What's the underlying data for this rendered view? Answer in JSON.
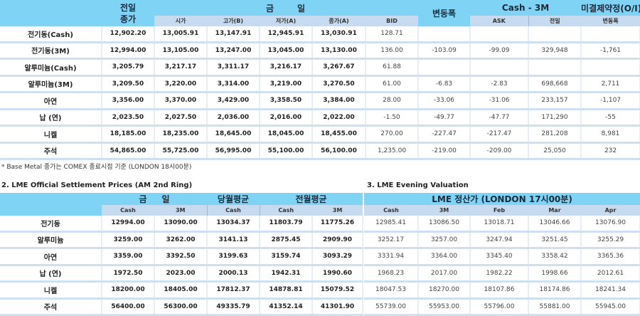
{
  "colors": {
    "header": "#7fd4f6",
    "subheader": "#c6daf0",
    "row_border": "#cfe0f0"
  },
  "table1": {
    "headers": {
      "prev_close": "전일\n종가",
      "today": "금     일",
      "open": "시가",
      "high": "고가(B)",
      "low": "저가(A)",
      "close": "종가(A)",
      "change": "변동폭",
      "cash3m": "Cash - 3M",
      "bid": "BID",
      "ask": "ASK",
      "oi": "미결제약정(O/I)",
      "oi_prev": "전일",
      "oi_change": "변동폭"
    },
    "rows": [
      [
        "전기동(Cash)",
        "12,902.20",
        "13,005.91",
        "13,147.91",
        "12,945.91",
        "13,030.91",
        "128.71",
        "",
        "",
        "",
        ""
      ],
      [
        "전기동(3M)",
        "12,994.00",
        "13,105.00",
        "13,247.00",
        "13,045.00",
        "13,130.00",
        "136.00",
        "-103.09",
        "-99.09",
        "329,948",
        "-1,761"
      ],
      [
        "알루미늄(Cash)",
        "3,205.79",
        "3,217.17",
        "3,311.17",
        "3,216.17",
        "3,267.67",
        "61.88",
        "",
        "",
        "",
        ""
      ],
      [
        "알루미늄(3M)",
        "3,209.50",
        "3,220.00",
        "3,314.00",
        "3,219.00",
        "3,270.50",
        "61.00",
        "-6.83",
        "-2.83",
        "698,668",
        "2,711"
      ],
      [
        "아연",
        "3,356.00",
        "3,370.00",
        "3,429.00",
        "3,358.50",
        "3,384.00",
        "28.00",
        "-33.06",
        "-31.06",
        "233,157",
        "-1,107"
      ],
      [
        "납 (연)",
        "2,023.50",
        "2,027.50",
        "2,036.00",
        "2,016.00",
        "2,022.00",
        "-1.50",
        "-49.77",
        "-47.77",
        "171,290",
        "-55"
      ],
      [
        "니켈",
        "18,185.00",
        "18,235.00",
        "18,645.00",
        "18,045.00",
        "18,455.00",
        "270.00",
        "-227.47",
        "-217.47",
        "281,208",
        "8,981"
      ],
      [
        "주석",
        "54,865.00",
        "55,725.00",
        "56,995.00",
        "55,100.00",
        "56,100.00",
        "1,235.00",
        "-219.00",
        "-209.00",
        "25,050",
        "232"
      ]
    ],
    "footnote": "* Base Metal 종가는 COMEX 종료시점 기준 (LONDON 18시00분)"
  },
  "table2": {
    "title": "2. LME Official Settlement Prices (AM 2nd Ring)",
    "headers": {
      "today": "금     일",
      "this_month": "당월평균",
      "last_month": "전월평균",
      "cash": "Cash",
      "m3": "3M"
    },
    "rows": [
      [
        "전기동",
        "12994.00",
        "13090.00",
        "13034.37",
        "11803.79",
        "11775.26"
      ],
      [
        "알루미늄",
        "3259.00",
        "3262.00",
        "3141.13",
        "2875.45",
        "2909.90"
      ],
      [
        "아연",
        "3359.00",
        "3392.50",
        "3199.63",
        "3159.74",
        "3093.29"
      ],
      [
        "납 (연)",
        "1972.50",
        "2023.00",
        "2000.13",
        "1942.31",
        "1990.60"
      ],
      [
        "니켈",
        "18200.00",
        "18405.00",
        "17812.37",
        "14878.81",
        "15079.52"
      ],
      [
        "주석",
        "56400.00",
        "56300.00",
        "49335.79",
        "41352.14",
        "41301.90"
      ]
    ]
  },
  "table3": {
    "title": "3. LME Evening Valuation",
    "header": "LME 정산가 (LONDON 17시00분)",
    "columns": [
      "Cash",
      "3M",
      "Feb",
      "Mar",
      "Apr"
    ],
    "rows": [
      [
        "12985.41",
        "13086.50",
        "13018.71",
        "13046.66",
        "13076.90"
      ],
      [
        "3252.17",
        "3257.00",
        "3247.94",
        "3251.45",
        "3255.29"
      ],
      [
        "3331.94",
        "3364.00",
        "3345.40",
        "3358.42",
        "3365.36"
      ],
      [
        "1968.23",
        "2017.00",
        "1982.22",
        "1998.66",
        "2012.61"
      ],
      [
        "18047.53",
        "18270.00",
        "18107.86",
        "18174.86",
        "18241.34"
      ],
      [
        "55739.00",
        "55953.00",
        "55796.00",
        "55881.00",
        "55945.00"
      ]
    ]
  }
}
